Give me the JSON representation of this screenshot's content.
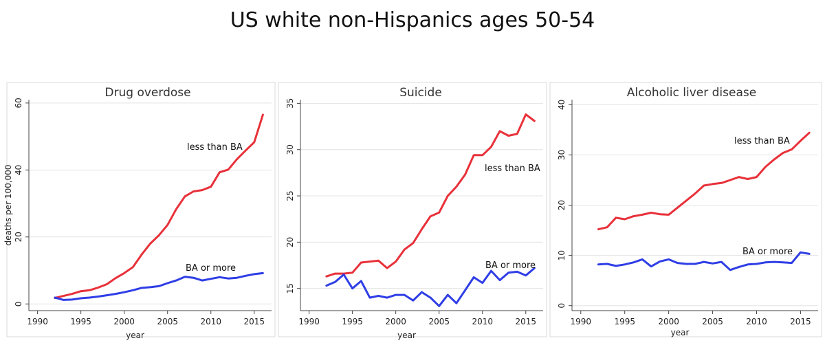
{
  "page_title": "US white non-Hispanics ages 50-54",
  "chart_data": [
    {
      "type": "line",
      "title": "Drug overdose",
      "xlabel": "year",
      "ylabel": "deaths per 100,000",
      "xlim": [
        1989,
        2017
      ],
      "ylim": [
        -2,
        61
      ],
      "xticks": [
        1990,
        1995,
        2000,
        2005,
        2010,
        2015
      ],
      "yticks": [
        0,
        20,
        40,
        60
      ],
      "grid": true,
      "x": [
        1992,
        1993,
        1994,
        1995,
        1996,
        1997,
        1998,
        1999,
        2000,
        2001,
        2002,
        2003,
        2004,
        2005,
        2006,
        2007,
        2008,
        2009,
        2010,
        2011,
        2012,
        2013,
        2014,
        2015,
        2016
      ],
      "series": [
        {
          "name": "less than BA",
          "color": "#e8313a",
          "values": [
            1.8,
            2.4,
            3.0,
            3.8,
            4.1,
            4.9,
            5.9,
            7.7,
            9.2,
            11.0,
            14.7,
            18.0,
            20.5,
            23.6,
            28.3,
            32.1,
            33.6,
            34.0,
            35.0,
            39.3,
            40.1,
            43.2,
            45.8,
            48.3,
            56.5
          ]
        },
        {
          "name": "BA or more",
          "color": "#2f3ee6",
          "values": [
            1.9,
            1.2,
            1.3,
            1.7,
            1.9,
            2.2,
            2.6,
            3.0,
            3.5,
            4.1,
            4.8,
            5.0,
            5.3,
            6.2,
            7.0,
            8.1,
            7.8,
            7.0,
            7.5,
            8.0,
            7.6,
            7.8,
            8.4,
            8.9,
            9.2
          ]
        }
      ]
    },
    {
      "type": "line",
      "title": "Suicide",
      "xlabel": "year",
      "ylabel": "",
      "xlim": [
        1989,
        2017
      ],
      "ylim": [
        12.6,
        35.4
      ],
      "xticks": [
        1990,
        1995,
        2000,
        2005,
        2010,
        2015
      ],
      "yticks": [
        15,
        20,
        25,
        30,
        35
      ],
      "grid": true,
      "x": [
        1992,
        1993,
        1994,
        1995,
        1996,
        1997,
        1998,
        1999,
        2000,
        2001,
        2002,
        2003,
        2004,
        2005,
        2006,
        2007,
        2008,
        2009,
        2010,
        2011,
        2012,
        2013,
        2014,
        2015,
        2016
      ],
      "series": [
        {
          "name": "less than BA",
          "color": "#e8313a",
          "values": [
            16.3,
            16.6,
            16.6,
            16.7,
            17.8,
            17.9,
            18.0,
            17.2,
            17.9,
            19.2,
            19.9,
            21.4,
            22.8,
            23.2,
            25.0,
            26.0,
            27.3,
            29.4,
            29.4,
            30.3,
            32.0,
            31.5,
            31.7,
            33.8,
            33.1
          ]
        },
        {
          "name": "BA or more",
          "color": "#2f3ee6",
          "values": [
            15.3,
            15.7,
            16.5,
            15.0,
            15.8,
            14.0,
            14.2,
            14.0,
            14.3,
            14.3,
            13.7,
            14.6,
            14.0,
            13.1,
            14.3,
            13.4,
            14.8,
            16.2,
            15.6,
            16.9,
            15.9,
            16.7,
            16.8,
            16.4,
            17.2
          ]
        }
      ]
    },
    {
      "type": "line",
      "title": "Alcoholic liver disease",
      "xlabel": "year",
      "ylabel": "",
      "xlim": [
        1989,
        2017
      ],
      "ylim": [
        -1,
        41
      ],
      "xticks": [
        1990,
        1995,
        2000,
        2005,
        2010,
        2015
      ],
      "yticks": [
        0,
        10,
        20,
        30,
        40
      ],
      "grid": true,
      "x": [
        1992,
        1993,
        1994,
        1995,
        1996,
        1997,
        1998,
        1999,
        2000,
        2001,
        2002,
        2003,
        2004,
        2005,
        2006,
        2007,
        2008,
        2009,
        2010,
        2011,
        2012,
        2013,
        2014,
        2015,
        2016
      ],
      "series": [
        {
          "name": "less than BA",
          "color": "#e8313a",
          "values": [
            15.2,
            15.6,
            17.5,
            17.2,
            17.8,
            18.1,
            18.5,
            18.2,
            18.1,
            19.5,
            20.9,
            22.3,
            23.9,
            24.2,
            24.4,
            25.0,
            25.6,
            25.2,
            25.6,
            27.6,
            29.1,
            30.4,
            31.1,
            32.8,
            34.4
          ]
        },
        {
          "name": "BA or more",
          "color": "#2f3ee6",
          "values": [
            8.2,
            8.3,
            7.9,
            8.2,
            8.6,
            9.2,
            7.8,
            8.8,
            9.2,
            8.5,
            8.3,
            8.3,
            8.7,
            8.4,
            8.7,
            7.1,
            7.7,
            8.2,
            8.3,
            8.6,
            8.7,
            8.6,
            8.5,
            10.6,
            10.3
          ]
        }
      ]
    }
  ]
}
